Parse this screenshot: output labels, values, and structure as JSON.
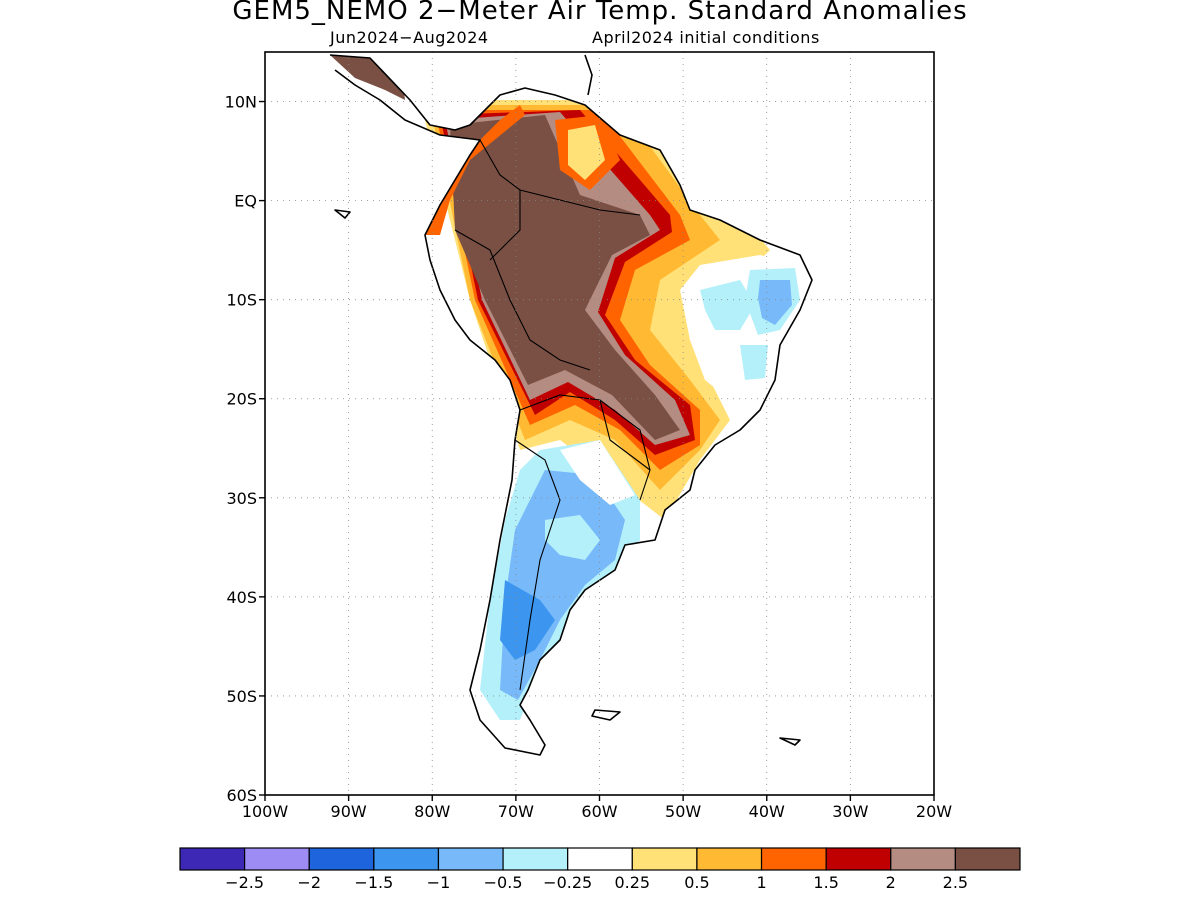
{
  "title": "GEM5_NEMO 2−Meter Air Temp. Standard Anomalies",
  "subtitle_period": "Jun2024−Aug2024",
  "subtitle_init": "April2024 initial conditions",
  "map": {
    "region": "South America",
    "lon_range": [
      -100,
      -20
    ],
    "lat_range": [
      -60,
      15
    ],
    "grid": "dotted",
    "lat_ticks": [
      {
        "value": 10,
        "label": "10N"
      },
      {
        "value": 0,
        "label": "EQ"
      },
      {
        "value": -10,
        "label": "10S"
      },
      {
        "value": -20,
        "label": "20S"
      },
      {
        "value": -30,
        "label": "30S"
      },
      {
        "value": -40,
        "label": "40S"
      },
      {
        "value": -50,
        "label": "50S"
      },
      {
        "value": -60,
        "label": "60S"
      }
    ],
    "lon_ticks": [
      {
        "value": -100,
        "label": "100W"
      },
      {
        "value": -90,
        "label": "90W"
      },
      {
        "value": -80,
        "label": "80W"
      },
      {
        "value": -70,
        "label": "70W"
      },
      {
        "value": -60,
        "label": "60W"
      },
      {
        "value": -50,
        "label": "50W"
      },
      {
        "value": -40,
        "label": "40W"
      },
      {
        "value": -30,
        "label": "30W"
      },
      {
        "value": -20,
        "label": "20W"
      }
    ]
  },
  "colorbar": {
    "colors": [
      "#3c28b4",
      "#9e8cf5",
      "#1e64dc",
      "#3c96f0",
      "#78b9fa",
      "#b4f0fa",
      "#ffffff",
      "#ffe178",
      "#ffb932",
      "#ff6400",
      "#c00000",
      "#b48c82",
      "#7a5044"
    ],
    "labels": [
      "−2.5",
      "−2",
      "−1.5",
      "−1",
      "−0.5",
      "−0.25",
      "0.25",
      "0.5",
      "1",
      "1.5",
      "2",
      "2.5"
    ]
  }
}
